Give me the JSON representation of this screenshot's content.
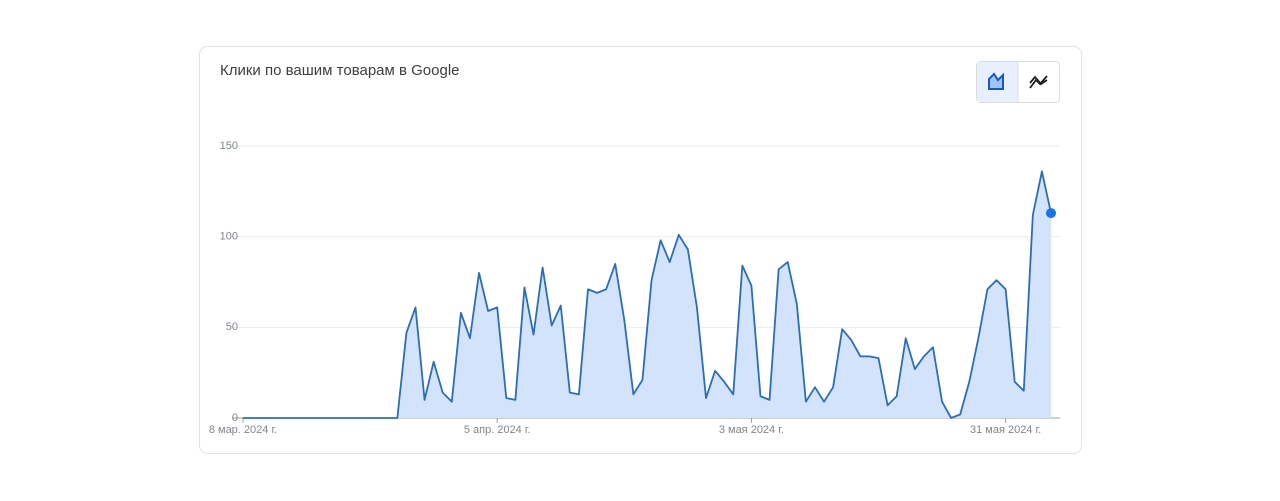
{
  "chart_data": {
    "type": "area",
    "title": "Клики по вашим товарам в Google",
    "x": [
      "2024-03-08",
      "2024-03-09",
      "2024-03-10",
      "2024-03-11",
      "2024-03-12",
      "2024-03-13",
      "2024-03-14",
      "2024-03-15",
      "2024-03-16",
      "2024-03-17",
      "2024-03-18",
      "2024-03-19",
      "2024-03-20",
      "2024-03-21",
      "2024-03-22",
      "2024-03-23",
      "2024-03-24",
      "2024-03-25",
      "2024-03-26",
      "2024-03-27",
      "2024-03-28",
      "2024-03-29",
      "2024-03-30",
      "2024-03-31",
      "2024-04-01",
      "2024-04-02",
      "2024-04-03",
      "2024-04-04",
      "2024-04-05",
      "2024-04-06",
      "2024-04-07",
      "2024-04-08",
      "2024-04-09",
      "2024-04-10",
      "2024-04-11",
      "2024-04-12",
      "2024-04-13",
      "2024-04-14",
      "2024-04-15",
      "2024-04-16",
      "2024-04-17",
      "2024-04-18",
      "2024-04-19",
      "2024-04-20",
      "2024-04-21",
      "2024-04-22",
      "2024-04-23",
      "2024-04-24",
      "2024-04-25",
      "2024-04-26",
      "2024-04-27",
      "2024-04-28",
      "2024-04-29",
      "2024-04-30",
      "2024-05-01",
      "2024-05-02",
      "2024-05-03",
      "2024-05-04",
      "2024-05-05",
      "2024-05-06",
      "2024-05-07",
      "2024-05-08",
      "2024-05-09",
      "2024-05-10",
      "2024-05-11",
      "2024-05-12",
      "2024-05-13",
      "2024-05-14",
      "2024-05-15",
      "2024-05-16",
      "2024-05-17",
      "2024-05-18",
      "2024-05-19",
      "2024-05-20",
      "2024-05-21",
      "2024-05-22",
      "2024-05-23",
      "2024-05-24",
      "2024-05-25",
      "2024-05-26",
      "2024-05-27",
      "2024-05-28",
      "2024-05-29",
      "2024-05-30",
      "2024-05-31",
      "2024-06-01",
      "2024-06-02",
      "2024-06-03",
      "2024-06-04",
      "2024-06-05"
    ],
    "values": [
      0,
      0,
      0,
      0,
      0,
      0,
      0,
      0,
      0,
      0,
      0,
      0,
      0,
      0,
      0,
      0,
      0,
      0,
      47,
      61,
      10,
      31,
      14,
      9,
      58,
      44,
      80,
      59,
      61,
      11,
      10,
      72,
      46,
      83,
      51,
      62,
      14,
      13,
      71,
      69,
      71,
      85,
      54,
      13,
      21,
      76,
      98,
      86,
      101,
      93,
      61,
      11,
      26,
      20,
      13,
      84,
      73,
      12,
      10,
      82,
      86,
      63,
      9,
      17,
      9,
      17,
      49,
      43,
      34,
      34,
      33,
      7,
      12,
      44,
      27,
      34,
      39,
      9,
      0,
      2,
      20,
      44,
      71,
      76,
      71,
      20,
      15,
      112,
      136,
      113
    ],
    "color": "#2c6db3",
    "fill": "#d3e3fb",
    "marker_color": "#1a73e8",
    "xlim": [
      "2024-03-08",
      "2024-06-05"
    ],
    "xticks": [
      {
        "value": "2024-03-08",
        "label": "8 мар. 2024 г."
      },
      {
        "value": "2024-04-05",
        "label": "5 апр. 2024 г."
      },
      {
        "value": "2024-05-03",
        "label": "3 мая 2024 г."
      },
      {
        "value": "2024-05-31",
        "label": "31 мая 2024 г."
      }
    ],
    "ylim": [
      0,
      150
    ],
    "yticks": [
      0,
      50,
      100,
      150
    ],
    "grid": true
  }
}
